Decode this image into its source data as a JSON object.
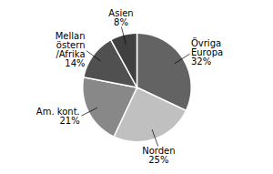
{
  "chart_data": {
    "type": "pie",
    "categories": [
      "Övriga\nEuropa",
      "Norden",
      "Am. kont.",
      "Mellan\nöstern\n/Afrika",
      "Asien"
    ],
    "values": [
      32,
      25,
      21,
      14,
      8
    ],
    "value_labels": [
      "32%",
      "25%",
      "21%",
      "14%",
      "8%"
    ],
    "colors": [
      "#636363",
      "#c0c0c0",
      "#888888",
      "#505050",
      "#404040"
    ],
    "data_labels": true
  }
}
